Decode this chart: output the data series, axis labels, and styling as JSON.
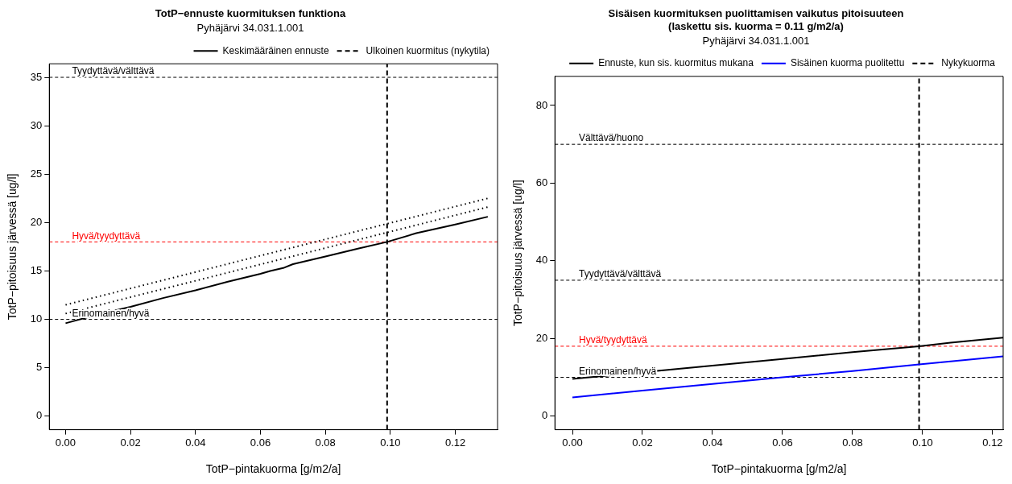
{
  "chart_data": [
    {
      "type": "line",
      "title": "TotP−ennuste kuormituksen funktiona",
      "subtitle": "Pyhäjärvi 34.031.1.001",
      "xlabel": "TotP−pintakuorma [g/m2/a]",
      "ylabel": "TotP−pitoisuus järvessä [ug/l]",
      "xlim": [
        -0.005,
        0.133
      ],
      "ylim": [
        -1.4,
        36.4
      ],
      "xticks": [
        {
          "value": 0,
          "label": "0.00"
        },
        {
          "value": 0.02,
          "label": "0.02"
        },
        {
          "value": 0.04,
          "label": "0.04"
        },
        {
          "value": 0.06,
          "label": "0.06"
        },
        {
          "value": 0.08,
          "label": "0.08"
        },
        {
          "value": 0.1,
          "label": "0.10"
        },
        {
          "value": 0.12,
          "label": "0.12"
        }
      ],
      "yticks": [
        0,
        5,
        10,
        15,
        20,
        25,
        30,
        35
      ],
      "grid": false,
      "legend": "top right",
      "marker": "none",
      "series": [
        {
          "name": "Keskimääräinen ennuste",
          "color": "#000000",
          "line_style": "solid",
          "x": [
            0,
            0.01,
            0.02,
            0.03,
            0.04,
            0.05,
            0.06,
            0.063,
            0.067,
            0.07,
            0.08,
            0.09,
            0.099,
            0.108,
            0.12,
            0.13
          ],
          "values": [
            9.6,
            10.5,
            11.3,
            12.2,
            13.0,
            13.9,
            14.7,
            15.0,
            15.3,
            15.7,
            16.5,
            17.3,
            18.0,
            18.9,
            19.8,
            20.6
          ]
        },
        {
          "name": "Ulkoinen kuormitus (nykytila)",
          "color": "#000000",
          "line_style": "dashed",
          "x": [
            0.099,
            0.099
          ],
          "values": [
            -1.4,
            36.4
          ]
        },
        {
          "color": "#000000",
          "line_style": "dotted",
          "x": [
            0,
            0.13
          ],
          "values": [
            11.5,
            22.5
          ]
        },
        {
          "color": "#000000",
          "line_style": "dotted",
          "x": [
            0,
            0.13
          ],
          "values": [
            10.6,
            21.6
          ]
        }
      ],
      "ref_lines": [
        {
          "axis": "y",
          "value": 35,
          "label": "Tyydyttävä/välttävä",
          "color": "#000000",
          "line_style": "dashed"
        },
        {
          "axis": "y",
          "value": 18,
          "label": "Hyvä/tyydyttävä",
          "color": "#ff0000",
          "line_style": "dashed"
        },
        {
          "axis": "y",
          "value": 10,
          "label": "Erinomainen/hyvä",
          "color": "#000000",
          "line_style": "dashed"
        }
      ]
    },
    {
      "type": "line",
      "title": "Sisäisen kuormituksen puolittamisen vaikutus pitoisuuteen\n(laskettu sis. kuorma = 0.11 g/m2/a)",
      "subtitle": "Pyhäjärvi 34.031.1.001",
      "xlabel": "TotP−pintakuorma [g/m2/a]",
      "ylabel": "TotP−pitoisuus järvessä [ug/l]",
      "xlim": [
        -0.005,
        0.123
      ],
      "ylim": [
        -3.5,
        87.5
      ],
      "xticks": [
        {
          "value": 0,
          "label": "0.00"
        },
        {
          "value": 0.02,
          "label": "0.02"
        },
        {
          "value": 0.04,
          "label": "0.04"
        },
        {
          "value": 0.06,
          "label": "0.06"
        },
        {
          "value": 0.08,
          "label": "0.08"
        },
        {
          "value": 0.1,
          "label": "0.10"
        },
        {
          "value": 0.12,
          "label": "0.12"
        }
      ],
      "yticks": [
        0,
        20,
        40,
        60,
        80
      ],
      "grid": false,
      "legend": "top right",
      "marker": "none",
      "series": [
        {
          "name": "Ennuste, kun sis. kuormitus mukana",
          "color": "#000000",
          "line_style": "solid",
          "x": [
            0,
            0.02,
            0.04,
            0.06,
            0.08,
            0.099,
            0.108,
            0.123
          ],
          "values": [
            9.6,
            11.3,
            13.0,
            14.7,
            16.5,
            18.0,
            18.9,
            20.2
          ]
        },
        {
          "name": "Sisäinen kuorma puolitettu",
          "color": "#0000ff",
          "line_style": "solid",
          "x": [
            0,
            0.02,
            0.04,
            0.06,
            0.08,
            0.099,
            0.123
          ],
          "values": [
            4.8,
            6.6,
            8.3,
            10.0,
            11.6,
            13.3,
            15.4
          ]
        },
        {
          "name": "Nykykuorma",
          "color": "#000000",
          "line_style": "dashed",
          "x": [
            0.099,
            0.099
          ],
          "values": [
            -3.5,
            87.5
          ]
        }
      ],
      "ref_lines": [
        {
          "axis": "y",
          "value": 70,
          "label": "Välttävä/huono",
          "color": "#000000",
          "line_style": "dashed"
        },
        {
          "axis": "y",
          "value": 35,
          "label": "Tyydyttävä/välttävä",
          "color": "#000000",
          "line_style": "dashed"
        },
        {
          "axis": "y",
          "value": 18,
          "label": "Hyvä/tyydyttävä",
          "color": "#ff0000",
          "line_style": "dashed"
        },
        {
          "axis": "y",
          "value": 10,
          "label": "Erinomainen/hyvä",
          "color": "#000000",
          "line_style": "dashed"
        }
      ]
    }
  ]
}
